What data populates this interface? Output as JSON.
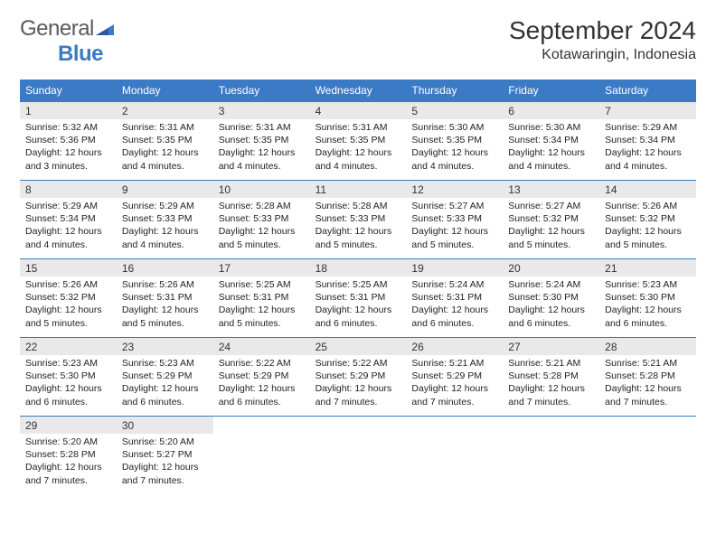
{
  "logo": {
    "text1": "General",
    "text2": "Blue"
  },
  "title": "September 2024",
  "location": "Kotawaringin, Indonesia",
  "colors": {
    "header_bg": "#3b7ac4",
    "daynum_bg": "#e9e9e9",
    "week_border": "#3b7ac4",
    "logo_gray": "#5a5a5a",
    "logo_blue": "#3b7ac4"
  },
  "fonts": {
    "title_size": 28,
    "location_size": 16,
    "weekday_size": 12,
    "daynum_size": 12,
    "body_size": 10.5
  },
  "weekdays": [
    "Sunday",
    "Monday",
    "Tuesday",
    "Wednesday",
    "Thursday",
    "Friday",
    "Saturday"
  ],
  "weeks": [
    [
      {
        "n": "1",
        "sr": "Sunrise: 5:32 AM",
        "ss": "Sunset: 5:36 PM",
        "d1": "Daylight: 12 hours",
        "d2": "and 3 minutes."
      },
      {
        "n": "2",
        "sr": "Sunrise: 5:31 AM",
        "ss": "Sunset: 5:35 PM",
        "d1": "Daylight: 12 hours",
        "d2": "and 4 minutes."
      },
      {
        "n": "3",
        "sr": "Sunrise: 5:31 AM",
        "ss": "Sunset: 5:35 PM",
        "d1": "Daylight: 12 hours",
        "d2": "and 4 minutes."
      },
      {
        "n": "4",
        "sr": "Sunrise: 5:31 AM",
        "ss": "Sunset: 5:35 PM",
        "d1": "Daylight: 12 hours",
        "d2": "and 4 minutes."
      },
      {
        "n": "5",
        "sr": "Sunrise: 5:30 AM",
        "ss": "Sunset: 5:35 PM",
        "d1": "Daylight: 12 hours",
        "d2": "and 4 minutes."
      },
      {
        "n": "6",
        "sr": "Sunrise: 5:30 AM",
        "ss": "Sunset: 5:34 PM",
        "d1": "Daylight: 12 hours",
        "d2": "and 4 minutes."
      },
      {
        "n": "7",
        "sr": "Sunrise: 5:29 AM",
        "ss": "Sunset: 5:34 PM",
        "d1": "Daylight: 12 hours",
        "d2": "and 4 minutes."
      }
    ],
    [
      {
        "n": "8",
        "sr": "Sunrise: 5:29 AM",
        "ss": "Sunset: 5:34 PM",
        "d1": "Daylight: 12 hours",
        "d2": "and 4 minutes."
      },
      {
        "n": "9",
        "sr": "Sunrise: 5:29 AM",
        "ss": "Sunset: 5:33 PM",
        "d1": "Daylight: 12 hours",
        "d2": "and 4 minutes."
      },
      {
        "n": "10",
        "sr": "Sunrise: 5:28 AM",
        "ss": "Sunset: 5:33 PM",
        "d1": "Daylight: 12 hours",
        "d2": "and 5 minutes."
      },
      {
        "n": "11",
        "sr": "Sunrise: 5:28 AM",
        "ss": "Sunset: 5:33 PM",
        "d1": "Daylight: 12 hours",
        "d2": "and 5 minutes."
      },
      {
        "n": "12",
        "sr": "Sunrise: 5:27 AM",
        "ss": "Sunset: 5:33 PM",
        "d1": "Daylight: 12 hours",
        "d2": "and 5 minutes."
      },
      {
        "n": "13",
        "sr": "Sunrise: 5:27 AM",
        "ss": "Sunset: 5:32 PM",
        "d1": "Daylight: 12 hours",
        "d2": "and 5 minutes."
      },
      {
        "n": "14",
        "sr": "Sunrise: 5:26 AM",
        "ss": "Sunset: 5:32 PM",
        "d1": "Daylight: 12 hours",
        "d2": "and 5 minutes."
      }
    ],
    [
      {
        "n": "15",
        "sr": "Sunrise: 5:26 AM",
        "ss": "Sunset: 5:32 PM",
        "d1": "Daylight: 12 hours",
        "d2": "and 5 minutes."
      },
      {
        "n": "16",
        "sr": "Sunrise: 5:26 AM",
        "ss": "Sunset: 5:31 PM",
        "d1": "Daylight: 12 hours",
        "d2": "and 5 minutes."
      },
      {
        "n": "17",
        "sr": "Sunrise: 5:25 AM",
        "ss": "Sunset: 5:31 PM",
        "d1": "Daylight: 12 hours",
        "d2": "and 5 minutes."
      },
      {
        "n": "18",
        "sr": "Sunrise: 5:25 AM",
        "ss": "Sunset: 5:31 PM",
        "d1": "Daylight: 12 hours",
        "d2": "and 6 minutes."
      },
      {
        "n": "19",
        "sr": "Sunrise: 5:24 AM",
        "ss": "Sunset: 5:31 PM",
        "d1": "Daylight: 12 hours",
        "d2": "and 6 minutes."
      },
      {
        "n": "20",
        "sr": "Sunrise: 5:24 AM",
        "ss": "Sunset: 5:30 PM",
        "d1": "Daylight: 12 hours",
        "d2": "and 6 minutes."
      },
      {
        "n": "21",
        "sr": "Sunrise: 5:23 AM",
        "ss": "Sunset: 5:30 PM",
        "d1": "Daylight: 12 hours",
        "d2": "and 6 minutes."
      }
    ],
    [
      {
        "n": "22",
        "sr": "Sunrise: 5:23 AM",
        "ss": "Sunset: 5:30 PM",
        "d1": "Daylight: 12 hours",
        "d2": "and 6 minutes."
      },
      {
        "n": "23",
        "sr": "Sunrise: 5:23 AM",
        "ss": "Sunset: 5:29 PM",
        "d1": "Daylight: 12 hours",
        "d2": "and 6 minutes."
      },
      {
        "n": "24",
        "sr": "Sunrise: 5:22 AM",
        "ss": "Sunset: 5:29 PM",
        "d1": "Daylight: 12 hours",
        "d2": "and 6 minutes."
      },
      {
        "n": "25",
        "sr": "Sunrise: 5:22 AM",
        "ss": "Sunset: 5:29 PM",
        "d1": "Daylight: 12 hours",
        "d2": "and 7 minutes."
      },
      {
        "n": "26",
        "sr": "Sunrise: 5:21 AM",
        "ss": "Sunset: 5:29 PM",
        "d1": "Daylight: 12 hours",
        "d2": "and 7 minutes."
      },
      {
        "n": "27",
        "sr": "Sunrise: 5:21 AM",
        "ss": "Sunset: 5:28 PM",
        "d1": "Daylight: 12 hours",
        "d2": "and 7 minutes."
      },
      {
        "n": "28",
        "sr": "Sunrise: 5:21 AM",
        "ss": "Sunset: 5:28 PM",
        "d1": "Daylight: 12 hours",
        "d2": "and 7 minutes."
      }
    ],
    [
      {
        "n": "29",
        "sr": "Sunrise: 5:20 AM",
        "ss": "Sunset: 5:28 PM",
        "d1": "Daylight: 12 hours",
        "d2": "and 7 minutes."
      },
      {
        "n": "30",
        "sr": "Sunrise: 5:20 AM",
        "ss": "Sunset: 5:27 PM",
        "d1": "Daylight: 12 hours",
        "d2": "and 7 minutes."
      },
      null,
      null,
      null,
      null,
      null
    ]
  ]
}
